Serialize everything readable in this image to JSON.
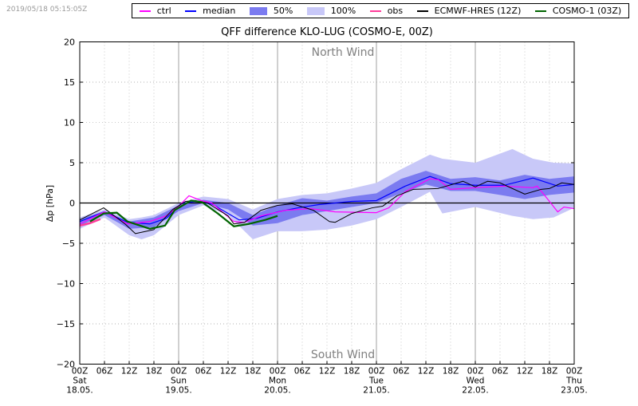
{
  "timestamp": "2019/05/18 05:15:05Z",
  "legend": [
    {
      "label": "ctrl",
      "kind": "line",
      "color": "#ff00ff"
    },
    {
      "label": "median",
      "kind": "line",
      "color": "#0000ff"
    },
    {
      "label": "50%",
      "kind": "box",
      "color": "#7b7bf0"
    },
    {
      "label": "100%",
      "kind": "box",
      "color": "#c8c8f8"
    },
    {
      "label": "obs",
      "kind": "line",
      "color": "#ff3c9a"
    },
    {
      "label": "ECMWF-HRES (12Z)",
      "kind": "line",
      "color": "#000000"
    },
    {
      "label": "COSMO-1 (03Z)",
      "kind": "line",
      "color": "#006400"
    }
  ],
  "chart_data": {
    "type": "line",
    "title": "QFF difference KLO-LUG (COSMO-E, 00Z)",
    "ylabel": "Δp [hPa]",
    "xlabel": "",
    "ylim": [
      -20,
      20
    ],
    "xlim_hours": [
      0,
      120
    ],
    "yticks": [
      20,
      15,
      10,
      5,
      0,
      -5,
      -10,
      -15,
      -20
    ],
    "yticklabels": [
      "20",
      "15",
      "10",
      "5",
      "0",
      "−5",
      "−10",
      "−15",
      "−20"
    ],
    "xtick_hour_labels": [
      "00Z",
      "06Z",
      "12Z",
      "18Z",
      "00Z",
      "06Z",
      "12Z",
      "18Z",
      "00Z",
      "06Z",
      "12Z",
      "18Z",
      "00Z",
      "06Z",
      "12Z",
      "18Z",
      "00Z",
      "06Z",
      "12Z",
      "18Z",
      "00Z"
    ],
    "day_labels": [
      {
        "hour": 0,
        "day": "Sat",
        "date": "18.05."
      },
      {
        "hour": 24,
        "day": "Sun",
        "date": "19.05."
      },
      {
        "hour": 48,
        "day": "Mon",
        "date": "20.05."
      },
      {
        "hour": 72,
        "day": "Tue",
        "date": "21.05."
      },
      {
        "hour": 96,
        "day": "Wed",
        "date": "22.05."
      },
      {
        "hour": 120,
        "day": "Thu",
        "date": "23.05."
      }
    ],
    "annotations": {
      "top": "North Wind",
      "bottom": "South Wind"
    },
    "grid": true,
    "legend_position": "top",
    "band_100": [
      [
        0,
        -3.2,
        -1.8
      ],
      [
        6,
        -1.8,
        -0.8
      ],
      [
        12,
        -4,
        -2
      ],
      [
        15,
        -4.5,
        -1.8
      ],
      [
        18,
        -4,
        -1.5
      ],
      [
        24,
        -1.5,
        0
      ],
      [
        30,
        -0.3,
        0.8
      ],
      [
        36,
        -1.5,
        0.5
      ],
      [
        42,
        -4.5,
        -0.8
      ],
      [
        48,
        -3.5,
        0.5
      ],
      [
        54,
        -3.5,
        1
      ],
      [
        60,
        -3.3,
        1.2
      ],
      [
        66,
        -2.8,
        1.8
      ],
      [
        72,
        -2,
        2.5
      ],
      [
        78,
        -0.5,
        4.2
      ],
      [
        85,
        1.4,
        6
      ],
      [
        88,
        -1.3,
        5.5
      ],
      [
        96,
        -0.5,
        5
      ],
      [
        105,
        -1.6,
        6.7
      ],
      [
        110,
        -2,
        5.5
      ],
      [
        115,
        -1.8,
        5
      ],
      [
        120,
        -0.6,
        4.9
      ]
    ],
    "band_50": [
      [
        0,
        -2.8,
        -2
      ],
      [
        6,
        -1.5,
        -1
      ],
      [
        12,
        -3.2,
        -2.3
      ],
      [
        18,
        -3,
        -1.8
      ],
      [
        24,
        -1,
        -0.3
      ],
      [
        30,
        0,
        0.4
      ],
      [
        36,
        -0.8,
        0
      ],
      [
        42,
        -2.8,
        -1.5
      ],
      [
        48,
        -2.5,
        -0.3
      ],
      [
        54,
        -1.5,
        0.6
      ],
      [
        60,
        -1,
        0.3
      ],
      [
        66,
        -0.5,
        0.8
      ],
      [
        72,
        0,
        1.2
      ],
      [
        78,
        1.2,
        3
      ],
      [
        84,
        2.3,
        4
      ],
      [
        90,
        1.5,
        3
      ],
      [
        96,
        1.5,
        3.2
      ],
      [
        102,
        1,
        2.8
      ],
      [
        108,
        0.5,
        3.5
      ],
      [
        114,
        1,
        3
      ],
      [
        120,
        1.3,
        3.3
      ]
    ],
    "series": [
      {
        "name": "median",
        "color": "#0000ff",
        "width": 1.2,
        "points": [
          [
            0,
            -2.3
          ],
          [
            6,
            -1.1
          ],
          [
            11.6,
            -2.4
          ],
          [
            17,
            -2.6
          ],
          [
            21,
            -1.9
          ],
          [
            24.5,
            -0.1
          ],
          [
            28,
            0.2
          ],
          [
            32,
            -0.1
          ],
          [
            37,
            -1.6
          ],
          [
            38.7,
            -2.1
          ],
          [
            43,
            -1.9
          ],
          [
            48,
            -1.1
          ],
          [
            53,
            -0.6
          ],
          [
            58,
            -0.2
          ],
          [
            66,
            0.2
          ],
          [
            72,
            0.3
          ],
          [
            79,
            2.1
          ],
          [
            85,
            3.3
          ],
          [
            90,
            2.4
          ],
          [
            96,
            2.2
          ],
          [
            103,
            2.2
          ],
          [
            110,
            3.1
          ],
          [
            116,
            2.1
          ],
          [
            120,
            2.3
          ]
        ]
      },
      {
        "name": "ctrl",
        "color": "#ff00ff",
        "width": 1.2,
        "points": [
          [
            0,
            -2.6
          ],
          [
            6,
            -1.1
          ],
          [
            11.6,
            -2.6
          ],
          [
            17,
            -2.3
          ],
          [
            21,
            -1.6
          ],
          [
            24,
            -0.4
          ],
          [
            26.5,
            0.9
          ],
          [
            29.5,
            0.3
          ],
          [
            32,
            0
          ],
          [
            37.4,
            -2.3
          ],
          [
            40,
            -2.4
          ],
          [
            44,
            -1.6
          ],
          [
            50,
            -0.9
          ],
          [
            56,
            -0.7
          ],
          [
            62,
            -1.1
          ],
          [
            72,
            -1.2
          ],
          [
            75,
            -0.6
          ],
          [
            79,
            1.4
          ],
          [
            85,
            3.0
          ],
          [
            87,
            2.9
          ],
          [
            90,
            1.7
          ],
          [
            96,
            1.9
          ],
          [
            103,
            2.1
          ],
          [
            110,
            1.9
          ],
          [
            111,
            2.1
          ],
          [
            114,
            0.2
          ],
          [
            116,
            -1.1
          ],
          [
            117.5,
            -0.5
          ],
          [
            120,
            -0.7
          ]
        ]
      },
      {
        "name": "obs",
        "color": "#ff3c9a",
        "width": 2.5,
        "points": [
          [
            0,
            -2.8
          ],
          [
            2.5,
            -2.5
          ],
          [
            5,
            -2.0
          ]
        ]
      },
      {
        "name": "ECMWF-HRES (12Z)",
        "color": "#000000",
        "width": 1,
        "points": [
          [
            0,
            -2.1
          ],
          [
            5.8,
            -0.6
          ],
          [
            11,
            -2.6
          ],
          [
            13.5,
            -3.8
          ],
          [
            18,
            -3.3
          ],
          [
            22.6,
            -0.8
          ],
          [
            25.7,
            0.2
          ],
          [
            28,
            0.3
          ],
          [
            31,
            0
          ],
          [
            36,
            -1.6
          ],
          [
            37.4,
            -2.6
          ],
          [
            40,
            -2.4
          ],
          [
            44,
            -0.9
          ],
          [
            48,
            -0.3
          ],
          [
            51.6,
            -0.1
          ],
          [
            56.7,
            -0.9
          ],
          [
            60.6,
            -2.3
          ],
          [
            62,
            -2.4
          ],
          [
            66,
            -1.3
          ],
          [
            71,
            -0.6
          ],
          [
            73.5,
            -0.4
          ],
          [
            77,
            0.9
          ],
          [
            81,
            1.7
          ],
          [
            87,
            1.8
          ],
          [
            93,
            2.7
          ],
          [
            96,
            2.0
          ],
          [
            99,
            2.7
          ],
          [
            102,
            2.5
          ],
          [
            108,
            1.1
          ],
          [
            112,
            1.7
          ],
          [
            114,
            1.8
          ],
          [
            117,
            2.5
          ],
          [
            120,
            2.3
          ]
        ]
      },
      {
        "name": "COSMO-1 (03Z)",
        "color": "#006400",
        "width": 2.2,
        "points": [
          [
            2.5,
            -2.3
          ],
          [
            5.8,
            -1.3
          ],
          [
            9,
            -1.2
          ],
          [
            11.6,
            -2.3
          ],
          [
            17,
            -3.2
          ],
          [
            20.7,
            -2.8
          ],
          [
            23,
            -0.9
          ],
          [
            27,
            0.3
          ],
          [
            29.7,
            0.1
          ],
          [
            33.5,
            -1.3
          ],
          [
            37.4,
            -2.9
          ],
          [
            41,
            -2.6
          ],
          [
            45,
            -2.1
          ],
          [
            48,
            -1.6
          ]
        ]
      }
    ]
  }
}
